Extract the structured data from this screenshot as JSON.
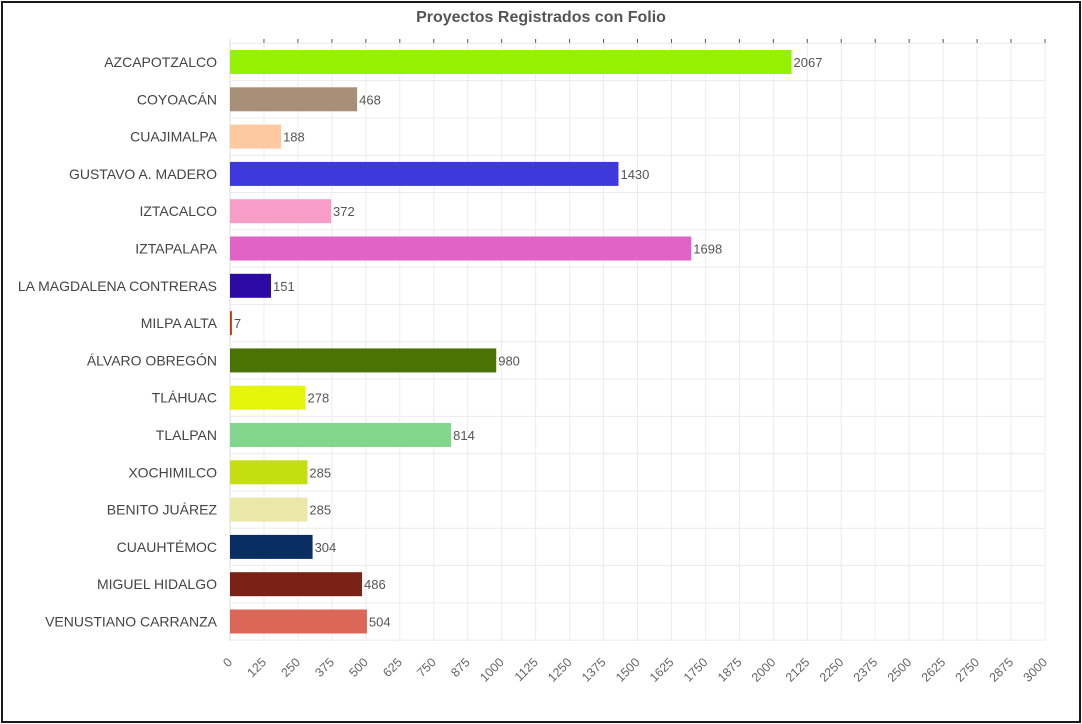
{
  "chart_data": {
    "type": "bar",
    "orientation": "horizontal",
    "title": "Proyectos Registrados con Folio",
    "categories": [
      "AZCAPOTZALCO",
      "COYOACÁN",
      "CUAJIMALPA",
      "GUSTAVO A. MADERO",
      "IZTACALCO",
      "IZTAPALAPA",
      "LA MAGDALENA CONTRERAS",
      "MILPA ALTA",
      "ÁLVARO OBREGÓN",
      "TLÁHUAC",
      "TLALPAN",
      "XOCHIMILCO",
      "BENITO JUÁREZ",
      "CUAUHTÉMOC",
      "MIGUEL HIDALGO",
      "VENUSTIANO CARRANZA"
    ],
    "values": [
      2067,
      468,
      188,
      1430,
      372,
      1698,
      151,
      7,
      980,
      278,
      814,
      285,
      285,
      304,
      486,
      504
    ],
    "colors": [
      "#95f002",
      "#a89078",
      "#fec9a0",
      "#3e39dc",
      "#f89cc8",
      "#e263c5",
      "#2c0aa3",
      "#c13b11",
      "#497305",
      "#e5f50a",
      "#83d68d",
      "#c4de10",
      "#e9e8a8",
      "#0b2e62",
      "#7a2215",
      "#dc6657"
    ],
    "xlim": [
      0,
      3000
    ],
    "x_ticks": [
      "0",
      "125",
      "250",
      "375",
      "500",
      "625",
      "750",
      "875",
      "1000",
      "1125",
      "1250",
      "1375",
      "1500",
      "1625",
      "1750",
      "1875",
      "2000",
      "2125",
      "2250",
      "2375",
      "2500",
      "2625",
      "2750",
      "2875",
      "3000"
    ],
    "grid": true,
    "xlabel": "",
    "ylabel": ""
  }
}
